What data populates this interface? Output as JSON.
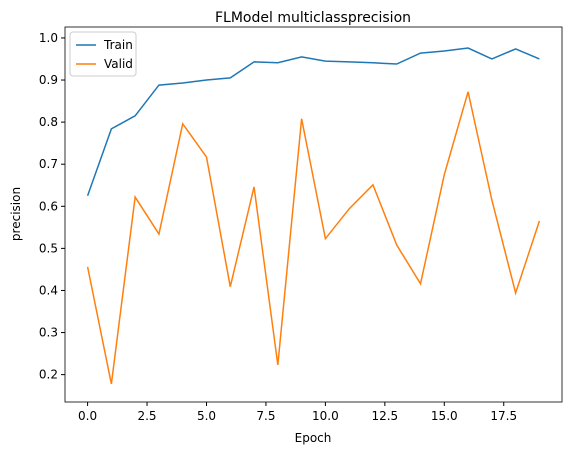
{
  "chart_data": {
    "type": "line",
    "title": "FLModel multiclassprecision",
    "x_label": "Epoch",
    "y_label": "precision",
    "x": [
      0,
      1,
      2,
      3,
      4,
      5,
      6,
      7,
      8,
      9,
      10,
      11,
      12,
      13,
      14,
      15,
      16,
      17,
      18,
      19
    ],
    "series": [
      {
        "name": "Train",
        "color": "#1f77b4",
        "values": [
          0.625,
          0.784,
          0.815,
          0.888,
          0.893,
          0.9,
          0.905,
          0.943,
          0.941,
          0.955,
          0.945,
          0.943,
          0.941,
          0.938,
          0.964,
          0.969,
          0.976,
          0.95,
          0.974,
          0.95
        ]
      },
      {
        "name": "Valid",
        "color": "#ff7f0e",
        "values": [
          0.456,
          0.178,
          0.622,
          0.534,
          0.796,
          0.717,
          0.409,
          0.646,
          0.223,
          0.808,
          0.523,
          0.594,
          0.651,
          0.508,
          0.416,
          0.675,
          0.872,
          0.615,
          0.394,
          0.565
        ]
      }
    ],
    "xlim": [
      -0.95,
      19.95
    ],
    "ylim": [
      0.135,
      1.026
    ],
    "xticks": [
      {
        "value": 0,
        "label": "0.0"
      },
      2.5,
      {
        "value": 5,
        "label": "5.0"
      },
      7.5,
      {
        "value": 10,
        "label": "10.0"
      },
      12.5,
      {
        "value": 15,
        "label": "15.0"
      },
      17.5
    ],
    "yticks": [
      0.2,
      0.3,
      0.4,
      0.5,
      0.6,
      0.7,
      0.8,
      0.9,
      {
        "value": 1,
        "label": "1.0"
      }
    ],
    "legend": "upper left"
  }
}
